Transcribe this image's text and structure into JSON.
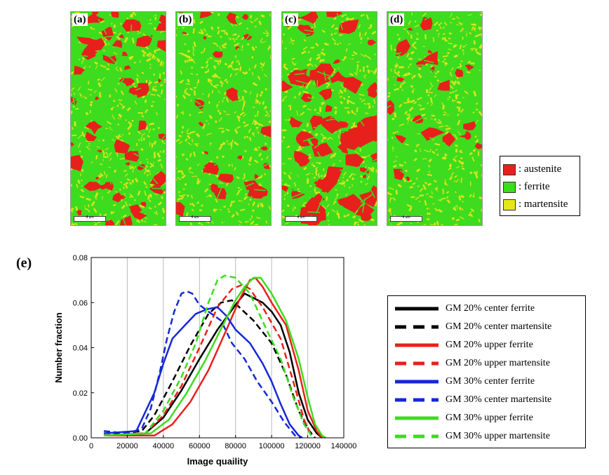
{
  "panels": [
    {
      "label": "(a)",
      "scale": "4 um"
    },
    {
      "label": "(b)",
      "scale": "4 um"
    },
    {
      "label": "(c)",
      "scale": "4 um"
    },
    {
      "label": "(d)",
      "scale": "4 um"
    }
  ],
  "phase_legend": [
    {
      "label": ": austenite",
      "color": "#e8201c"
    },
    {
      "label": ": ferrite",
      "color": "#3ddc1e"
    },
    {
      "label": ": martensite",
      "color": "#e6e619"
    }
  ],
  "panel_e_label": "(e)",
  "chart_data": {
    "type": "line",
    "xlabel": "Image quaility",
    "ylabel": "Number fraction",
    "xlim": [
      0,
      140000
    ],
    "ylim": [
      0,
      0.08
    ],
    "xticks": [
      "0",
      "20000",
      "40000",
      "60000",
      "80000",
      "100000",
      "120000",
      "140000"
    ],
    "yticks": [
      "0.00",
      "0.02",
      "0.04",
      "0.06",
      "0.08"
    ],
    "grid": "vertical",
    "legend_position": "right",
    "series": [
      {
        "name": "GM 20% center ferrite",
        "color": "#000000",
        "dash": false,
        "points": [
          [
            7000,
            0.001
          ],
          [
            30000,
            0.002
          ],
          [
            40000,
            0.009
          ],
          [
            50000,
            0.021
          ],
          [
            60000,
            0.035
          ],
          [
            70000,
            0.048
          ],
          [
            80000,
            0.059
          ],
          [
            85000,
            0.064
          ],
          [
            90000,
            0.062
          ],
          [
            95000,
            0.06
          ],
          [
            100000,
            0.056
          ],
          [
            105000,
            0.05
          ],
          [
            110000,
            0.038
          ],
          [
            115000,
            0.02
          ],
          [
            120000,
            0.008
          ],
          [
            125000,
            0.002
          ],
          [
            128000,
            0.0
          ]
        ]
      },
      {
        "name": "GM 20% center martensite",
        "color": "#000000",
        "dash": true,
        "points": [
          [
            7000,
            0.001
          ],
          [
            28000,
            0.003
          ],
          [
            35000,
            0.01
          ],
          [
            45000,
            0.025
          ],
          [
            55000,
            0.041
          ],
          [
            65000,
            0.055
          ],
          [
            72000,
            0.06
          ],
          [
            78000,
            0.061
          ],
          [
            82000,
            0.058
          ],
          [
            90000,
            0.052
          ],
          [
            100000,
            0.042
          ],
          [
            108000,
            0.028
          ],
          [
            115000,
            0.012
          ],
          [
            120000,
            0.004
          ],
          [
            124000,
            0.0
          ]
        ]
      },
      {
        "name": "GM 20% upper ferrite",
        "color": "#e8201c",
        "dash": false,
        "points": [
          [
            7000,
            0.001
          ],
          [
            35000,
            0.001
          ],
          [
            45000,
            0.006
          ],
          [
            55000,
            0.016
          ],
          [
            65000,
            0.03
          ],
          [
            75000,
            0.048
          ],
          [
            82000,
            0.061
          ],
          [
            88000,
            0.07
          ],
          [
            91000,
            0.071
          ],
          [
            95000,
            0.067
          ],
          [
            100000,
            0.06
          ],
          [
            108000,
            0.05
          ],
          [
            115000,
            0.03
          ],
          [
            120000,
            0.012
          ],
          [
            125000,
            0.003
          ],
          [
            128000,
            0.0
          ]
        ]
      },
      {
        "name": "GM 20% upper martensite",
        "color": "#e8201c",
        "dash": true,
        "points": [
          [
            7000,
            0.001
          ],
          [
            30000,
            0.002
          ],
          [
            40000,
            0.01
          ],
          [
            50000,
            0.023
          ],
          [
            60000,
            0.04
          ],
          [
            70000,
            0.058
          ],
          [
            78000,
            0.066
          ],
          [
            84000,
            0.068
          ],
          [
            88000,
            0.066
          ],
          [
            95000,
            0.058
          ],
          [
            105000,
            0.044
          ],
          [
            112000,
            0.025
          ],
          [
            118000,
            0.008
          ],
          [
            122000,
            0.001
          ]
        ]
      },
      {
        "name": "GM 30% center ferrite",
        "color": "#1528d6",
        "dash": false,
        "points": [
          [
            7000,
            0.002
          ],
          [
            25000,
            0.003
          ],
          [
            35000,
            0.02
          ],
          [
            40000,
            0.033
          ],
          [
            45000,
            0.044
          ],
          [
            52000,
            0.05
          ],
          [
            58000,
            0.055
          ],
          [
            64000,
            0.057
          ],
          [
            70000,
            0.058
          ],
          [
            75000,
            0.054
          ],
          [
            80000,
            0.048
          ],
          [
            88000,
            0.042
          ],
          [
            95000,
            0.033
          ],
          [
            100000,
            0.025
          ],
          [
            105000,
            0.015
          ],
          [
            110000,
            0.006
          ],
          [
            115000,
            0.001
          ],
          [
            117000,
            0.0
          ]
        ]
      },
      {
        "name": "GM 30% center martensite",
        "color": "#1528d6",
        "dash": true,
        "points": [
          [
            7000,
            0.003
          ],
          [
            20000,
            0.002
          ],
          [
            28000,
            0.004
          ],
          [
            33000,
            0.013
          ],
          [
            38000,
            0.029
          ],
          [
            42000,
            0.044
          ],
          [
            46000,
            0.056
          ],
          [
            50000,
            0.064
          ],
          [
            53000,
            0.065
          ],
          [
            56000,
            0.064
          ],
          [
            60000,
            0.059
          ],
          [
            65000,
            0.056
          ],
          [
            72000,
            0.052
          ],
          [
            78000,
            0.042
          ],
          [
            85000,
            0.035
          ],
          [
            92000,
            0.025
          ],
          [
            100000,
            0.016
          ],
          [
            107000,
            0.007
          ],
          [
            113000,
            0.001
          ],
          [
            116000,
            0.0
          ]
        ]
      },
      {
        "name": "GM 30% upper ferrite",
        "color": "#3ddc1e",
        "dash": false,
        "points": [
          [
            7000,
            0.001
          ],
          [
            33000,
            0.002
          ],
          [
            43000,
            0.008
          ],
          [
            53000,
            0.02
          ],
          [
            63000,
            0.034
          ],
          [
            73000,
            0.05
          ],
          [
            80000,
            0.061
          ],
          [
            85000,
            0.067
          ],
          [
            90000,
            0.071
          ],
          [
            94000,
            0.071
          ],
          [
            100000,
            0.064
          ],
          [
            108000,
            0.052
          ],
          [
            115000,
            0.035
          ],
          [
            120000,
            0.018
          ],
          [
            124000,
            0.006
          ],
          [
            128000,
            0.001
          ],
          [
            130000,
            0.0
          ]
        ]
      },
      {
        "name": "GM 30% upper martensite",
        "color": "#3ddc1e",
        "dash": true,
        "points": [
          [
            7000,
            0.001
          ],
          [
            30000,
            0.002
          ],
          [
            40000,
            0.012
          ],
          [
            50000,
            0.027
          ],
          [
            58000,
            0.042
          ],
          [
            65000,
            0.06
          ],
          [
            70000,
            0.07
          ],
          [
            74000,
            0.072
          ],
          [
            80000,
            0.071
          ],
          [
            88000,
            0.064
          ],
          [
            96000,
            0.05
          ],
          [
            105000,
            0.035
          ],
          [
            112000,
            0.018
          ],
          [
            118000,
            0.006
          ],
          [
            122000,
            0.001
          ]
        ]
      }
    ]
  }
}
